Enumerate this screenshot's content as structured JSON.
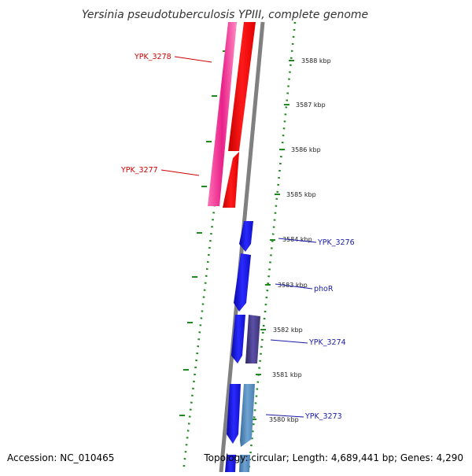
{
  "title": "Yersinia pseudotuberculosis YPIII, complete genome",
  "accession": "Accession: NC_010465",
  "topology": "Topology: circular; Length: 4,689,441 bp; Genes: 4,290",
  "ticks": [
    {
      "label": "3588 kbp"
    },
    {
      "label": "3587 kbp"
    },
    {
      "label": "3586 kbp"
    },
    {
      "label": "3585 kbp"
    },
    {
      "label": "3584 kbp"
    },
    {
      "label": "3583 kbp"
    },
    {
      "label": "3582 kbp"
    },
    {
      "label": "3581 kbp"
    },
    {
      "label": "3580 kbp"
    }
  ],
  "genes": [
    {
      "label": "YPK_3278",
      "color": "#e8218a"
    },
    {
      "label": "YPK_3277",
      "color": "#ee1111"
    },
    {
      "label": "YPK_3276",
      "color": "#1a1aa6"
    },
    {
      "label": "phoR",
      "color": "#1a1aa6"
    },
    {
      "label": "YPK_3274",
      "color": "#1a1aa6"
    },
    {
      "label": "YPK_3273",
      "color": "#1a1aa6"
    }
  ],
  "colors": {
    "forward_track": "#e8218a",
    "red_track": "#ee1111",
    "blue_track": "#1212dd",
    "purple_gene": "#4a3f8c",
    "steel_gene": "#4d84b8",
    "backbone": "#808080",
    "dotted_ring": "#1f8a1f"
  }
}
